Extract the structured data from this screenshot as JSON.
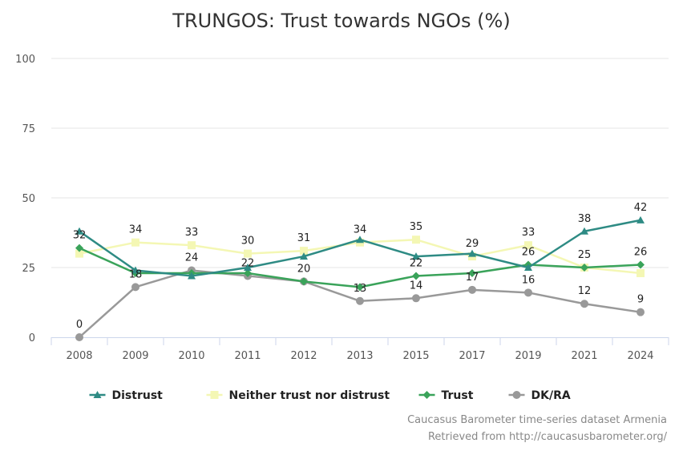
{
  "chart_data": {
    "type": "line",
    "title": "TRUNGOS: Trust towards NGOs (%)",
    "xlabel": "",
    "ylabel": "",
    "ylim": [
      0,
      100
    ],
    "y_ticks": [
      0,
      25,
      50,
      75,
      100
    ],
    "categories": [
      "2008",
      "2009",
      "2010",
      "2011",
      "2012",
      "2013",
      "2015",
      "2017",
      "2019",
      "2021",
      "2024"
    ],
    "legend_position": "bottom-center",
    "series": [
      {
        "name": "Distrust",
        "color": "#2e8b84",
        "marker": "triangle",
        "values": [
          38,
          24,
          22,
          25,
          29,
          35,
          29,
          30,
          25,
          38,
          42
        ]
      },
      {
        "name": "Neither trust nor distrust",
        "color": "#f4f7b4",
        "marker": "square",
        "values": [
          30,
          34,
          33,
          30,
          31,
          34,
          35,
          29,
          33,
          25,
          23
        ]
      },
      {
        "name": "Trust",
        "color": "#3aa35a",
        "marker": "diamond",
        "values": [
          32,
          23,
          23,
          23,
          20,
          18,
          22,
          23,
          26,
          25,
          26
        ]
      },
      {
        "name": "DK/RA",
        "color": "#999999",
        "marker": "circle",
        "values": [
          0,
          18,
          24,
          22,
          20,
          13,
          14,
          17,
          16,
          12,
          9
        ]
      }
    ],
    "data_labels": [
      {
        "category": "2008",
        "text": "32"
      },
      {
        "category": "2008",
        "text": "0"
      },
      {
        "category": "2009",
        "text": "34"
      },
      {
        "category": "2009",
        "text": "18"
      },
      {
        "category": "2010",
        "text": "33"
      },
      {
        "category": "2010",
        "text": "24"
      },
      {
        "category": "2011",
        "text": "30"
      },
      {
        "category": "2011",
        "text": "22"
      },
      {
        "category": "2012",
        "text": "31"
      },
      {
        "category": "2012",
        "text": "20"
      },
      {
        "category": "2013",
        "text": "34"
      },
      {
        "category": "2013",
        "text": "13"
      },
      {
        "category": "2015",
        "text": "35"
      },
      {
        "category": "2015",
        "text": "22"
      },
      {
        "category": "2015",
        "text": "14"
      },
      {
        "category": "2017",
        "text": "29"
      },
      {
        "category": "2017",
        "text": "17"
      },
      {
        "category": "2019",
        "text": "33"
      },
      {
        "category": "2019",
        "text": "26"
      },
      {
        "category": "2019",
        "text": "16"
      },
      {
        "category": "2021",
        "text": "38"
      },
      {
        "category": "2021",
        "text": "25"
      },
      {
        "category": "2021",
        "text": "12"
      },
      {
        "category": "2024",
        "text": "42"
      },
      {
        "category": "2024",
        "text": "26"
      },
      {
        "category": "2024",
        "text": "9"
      }
    ]
  },
  "credits": {
    "line1": "Caucasus Barometer time-series dataset Armenia",
    "line2": "Retrieved from http://caucasusbarometer.org/"
  }
}
